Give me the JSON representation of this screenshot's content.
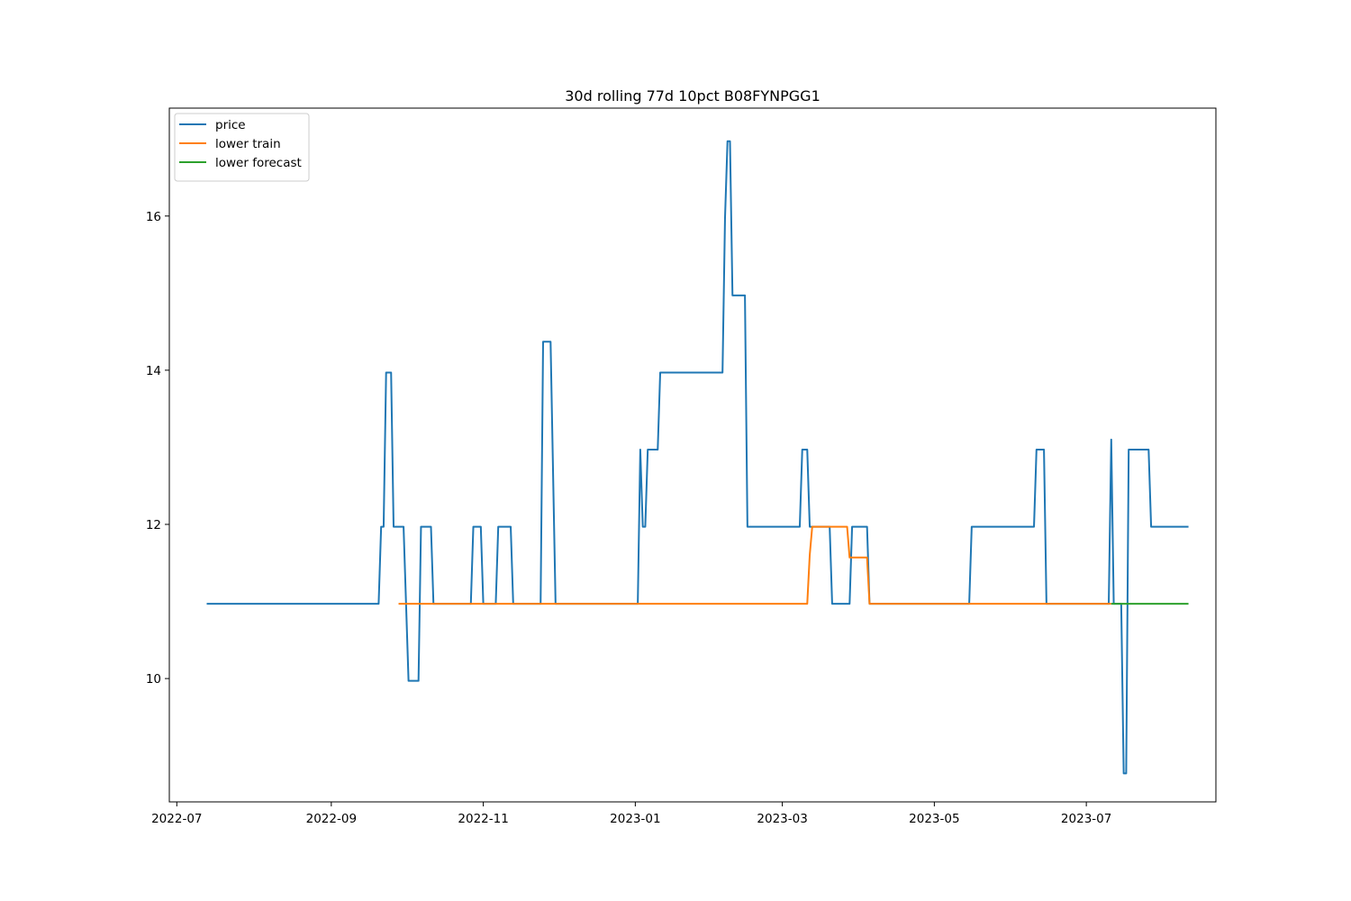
{
  "chart_data": {
    "type": "line",
    "title": "30d rolling 77d 10pct B08FYNPGG1",
    "xlabel": "",
    "ylabel": "",
    "xlim": [
      "2022-06-28",
      "2023-08-22"
    ],
    "ylim": [
      8.4,
      17.4
    ],
    "x_ticks": [
      "2022-07",
      "2022-09",
      "2022-11",
      "2023-01",
      "2023-03",
      "2023-05",
      "2023-07"
    ],
    "y_ticks": [
      10,
      12,
      14,
      16
    ],
    "grid": false,
    "legend_position": "top-left",
    "series": [
      {
        "name": "price",
        "color": "#1f77b4",
        "points": [
          [
            "2022-07-13",
            10.97
          ],
          [
            "2022-09-20",
            10.97
          ],
          [
            "2022-09-21",
            11.97
          ],
          [
            "2022-09-22",
            11.97
          ],
          [
            "2022-09-23",
            13.97
          ],
          [
            "2022-09-25",
            13.97
          ],
          [
            "2022-09-26",
            11.97
          ],
          [
            "2022-09-30",
            11.97
          ],
          [
            "2022-10-02",
            9.97
          ],
          [
            "2022-10-06",
            9.97
          ],
          [
            "2022-10-07",
            11.97
          ],
          [
            "2022-10-11",
            11.97
          ],
          [
            "2022-10-12",
            10.97
          ],
          [
            "2022-10-27",
            10.97
          ],
          [
            "2022-10-28",
            11.97
          ],
          [
            "2022-10-31",
            11.97
          ],
          [
            "2022-11-01",
            10.97
          ],
          [
            "2022-11-06",
            10.97
          ],
          [
            "2022-11-07",
            11.97
          ],
          [
            "2022-11-12",
            11.97
          ],
          [
            "2022-11-13",
            10.97
          ],
          [
            "2022-11-24",
            10.97
          ],
          [
            "2022-11-25",
            14.37
          ],
          [
            "2022-11-28",
            14.37
          ],
          [
            "2022-11-30",
            10.97
          ],
          [
            "2023-01-02",
            10.97
          ],
          [
            "2023-01-03",
            12.97
          ],
          [
            "2023-01-04",
            11.97
          ],
          [
            "2023-01-05",
            11.97
          ],
          [
            "2023-01-06",
            12.97
          ],
          [
            "2023-01-10",
            12.97
          ],
          [
            "2023-01-11",
            13.97
          ],
          [
            "2023-02-05",
            13.97
          ],
          [
            "2023-02-06",
            15.97
          ],
          [
            "2023-02-07",
            16.97
          ],
          [
            "2023-02-08",
            16.97
          ],
          [
            "2023-02-09",
            14.97
          ],
          [
            "2023-02-14",
            14.97
          ],
          [
            "2023-02-15",
            11.97
          ],
          [
            "2023-03-08",
            11.97
          ],
          [
            "2023-03-09",
            12.97
          ],
          [
            "2023-03-11",
            12.97
          ],
          [
            "2023-03-12",
            11.97
          ],
          [
            "2023-03-20",
            11.97
          ],
          [
            "2023-03-21",
            10.97
          ],
          [
            "2023-03-28",
            10.97
          ],
          [
            "2023-03-29",
            11.97
          ],
          [
            "2023-04-04",
            11.97
          ],
          [
            "2023-04-05",
            10.97
          ],
          [
            "2023-05-15",
            10.97
          ],
          [
            "2023-05-16",
            11.97
          ],
          [
            "2023-06-10",
            11.97
          ],
          [
            "2023-06-11",
            12.97
          ],
          [
            "2023-06-14",
            12.97
          ],
          [
            "2023-06-15",
            10.97
          ],
          [
            "2023-07-10",
            10.97
          ],
          [
            "2023-07-11",
            13.1
          ],
          [
            "2023-07-12",
            10.97
          ],
          [
            "2023-07-15",
            10.97
          ],
          [
            "2023-07-16",
            8.77
          ],
          [
            "2023-07-17",
            8.77
          ],
          [
            "2023-07-18",
            12.97
          ],
          [
            "2023-07-26",
            12.97
          ],
          [
            "2023-07-27",
            11.97
          ],
          [
            "2023-08-11",
            11.97
          ]
        ]
      },
      {
        "name": "lower train",
        "color": "#ff7f0e",
        "points": [
          [
            "2022-09-28",
            10.97
          ],
          [
            "2023-03-11",
            10.97
          ],
          [
            "2023-03-12",
            11.6
          ],
          [
            "2023-03-13",
            11.97
          ],
          [
            "2023-03-27",
            11.97
          ],
          [
            "2023-03-28",
            11.57
          ],
          [
            "2023-04-04",
            11.57
          ],
          [
            "2023-04-05",
            10.97
          ],
          [
            "2023-07-11",
            10.97
          ]
        ]
      },
      {
        "name": "lower forecast",
        "color": "#2ca02c",
        "points": [
          [
            "2023-07-11",
            10.97
          ],
          [
            "2023-08-11",
            10.97
          ]
        ]
      }
    ]
  }
}
